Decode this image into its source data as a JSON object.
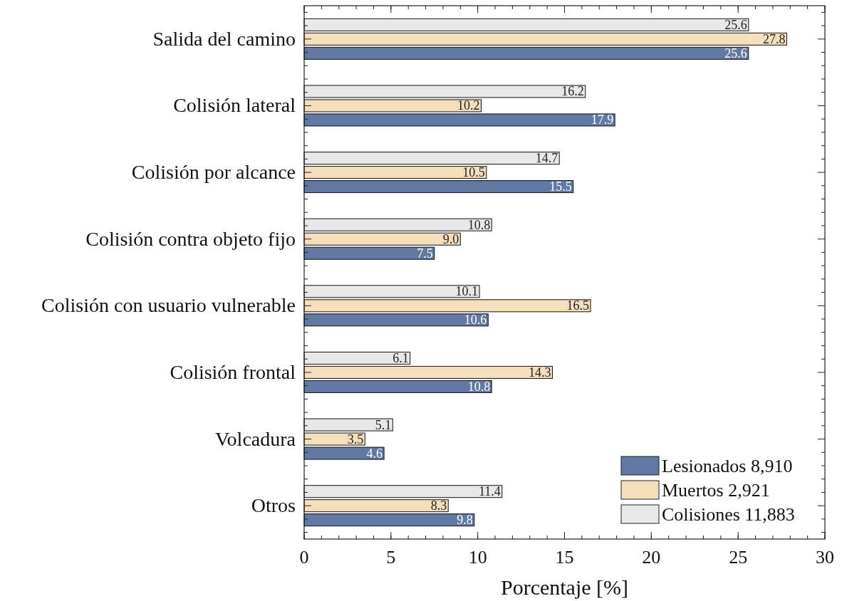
{
  "chart_data": {
    "type": "bar",
    "orientation": "horizontal",
    "xlabel": "Porcentaje [%]",
    "categories": [
      "Salida del camino",
      "Colisión lateral",
      "Colisión por alcance",
      "Colisión contra objeto fijo",
      "Colisión con usuario vulnerable",
      "Colisión frontal",
      "Volcadura",
      "Otros"
    ],
    "series": [
      {
        "name": "Lesionados 8,910",
        "color": "#6279a3",
        "values": [
          25.6,
          17.9,
          15.5,
          7.5,
          10.6,
          10.8,
          4.6,
          9.8
        ],
        "value_labels": [
          "25.6",
          "17.9",
          "15.5",
          "7.5",
          "10.6",
          "10.8",
          "4.6",
          "9.8"
        ]
      },
      {
        "name": "Muertos 2,921",
        "color": "#f4dfbc",
        "values": [
          27.8,
          10.2,
          10.5,
          9.0,
          16.5,
          14.3,
          3.5,
          8.3
        ],
        "value_labels": [
          "27.8",
          "10.2",
          "10.5",
          "9.0",
          "16.5",
          "14.3",
          "3.5",
          "8.3"
        ]
      },
      {
        "name": "Colisiones 11,883",
        "color": "#e8e8e8",
        "values": [
          25.6,
          16.2,
          14.7,
          10.8,
          10.1,
          6.1,
          5.1,
          11.4
        ],
        "value_labels": [
          "25.6",
          "16.2",
          "14.7",
          "10.8",
          "10.1",
          "6.1",
          "5.1",
          "11.4"
        ]
      }
    ],
    "xlim": [
      0,
      30
    ],
    "xticks": [
      0,
      5,
      10,
      15,
      20,
      25,
      30
    ],
    "grid": false,
    "legend": "bottom right"
  }
}
